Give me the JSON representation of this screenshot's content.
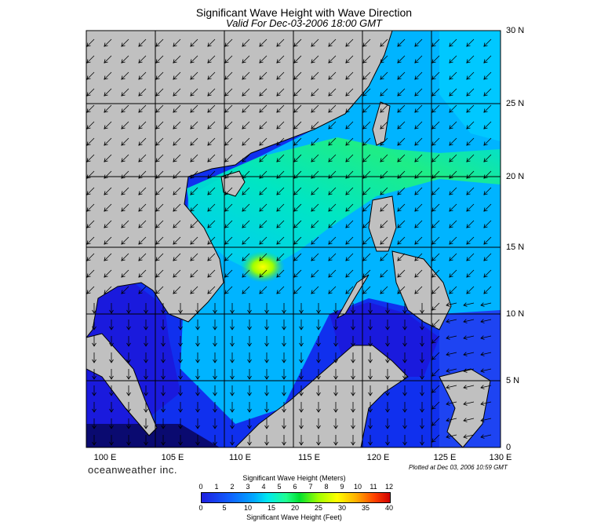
{
  "title": "Significant Wave Height with Wave Direction",
  "subtitle": "Valid For Dec-03-2006 18:00 GMT",
  "lat_labels": [
    "30 N",
    "25 N",
    "20 N",
    "15 N",
    "10 N",
    "5 N",
    "0"
  ],
  "lon_labels": [
    "100 E",
    "105 E",
    "110 E",
    "115 E",
    "120 E",
    "125 E",
    "130 E"
  ],
  "brand": "oceanweather inc.",
  "plotted": "Plotted at Dec 03, 2006 10:59 GMT",
  "colorbar": {
    "top_title": "Significant Wave Height (Meters)",
    "bottom_title": "Significant Wave Height (Feet)",
    "meter_ticks": [
      "0",
      "1",
      "2",
      "3",
      "4",
      "5",
      "6",
      "7",
      "8",
      "9",
      "10",
      "11",
      "12"
    ],
    "feet_ticks": [
      "0",
      "5",
      "10",
      "15",
      "20",
      "25",
      "30",
      "35",
      "40"
    ],
    "colors": [
      "#1f1fe0",
      "#1060ff",
      "#00aaff",
      "#00e8f0",
      "#20ff90",
      "#00e030",
      "#a0ff00",
      "#ffff00",
      "#ffb000",
      "#ff4000",
      "#d00000"
    ]
  },
  "colors": {
    "land": "#c0c0c0",
    "coast": "#000000",
    "deep_water": "#1a1add"
  }
}
